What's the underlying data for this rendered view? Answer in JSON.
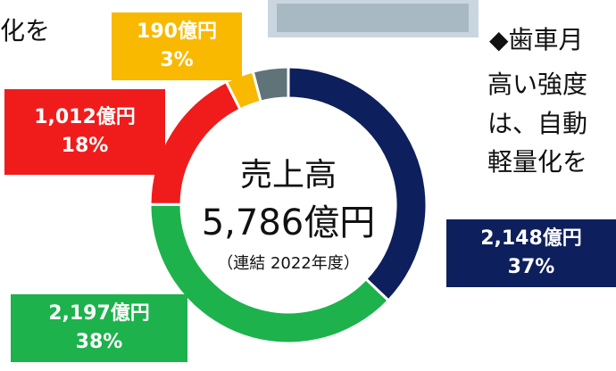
{
  "chart_data": {
    "type": "donut",
    "center_title": "売上高",
    "center_value": "5,786億円",
    "center_note": "（連結 2022年度）",
    "categories": [
      null,
      null,
      null,
      null,
      null
    ],
    "values": [
      2148,
      2197,
      1012,
      190,
      239
    ],
    "value_labels": [
      "2,148億円",
      "2,197億円",
      "1,012億円",
      "190億円",
      null
    ],
    "percents": [
      37,
      38,
      18,
      3,
      4
    ],
    "percent_labels": [
      "37%",
      "38%",
      "18%",
      "3%",
      null
    ],
    "colors": [
      "#0d1f5c",
      "#1db24c",
      "#f01c1c",
      "#f8b900",
      "#5f7379"
    ]
  },
  "background_text": [
    "化を",
    "◆歯車月",
    "高い強度",
    "は、自動",
    "軽量化を"
  ]
}
